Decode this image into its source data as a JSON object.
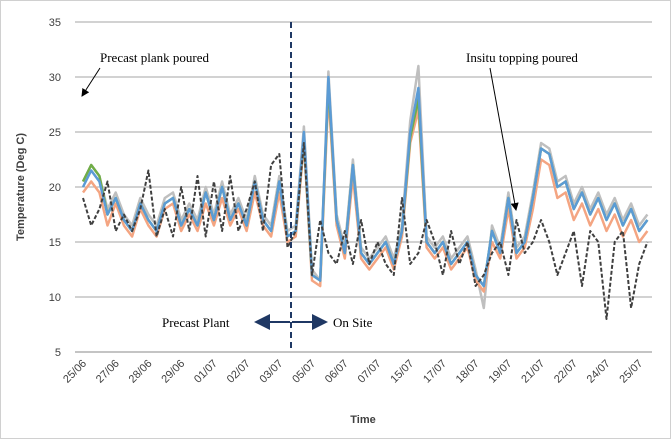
{
  "chart_data": {
    "type": "line",
    "y_label": "Temperature (Deg C)",
    "x_label": "Time",
    "annotations": [
      "Precast plank poured",
      "Insitu topping poured",
      "Precast Plant",
      "On Site"
    ],
    "categories": [
      "25/06",
      null,
      null,
      null,
      "27/06",
      null,
      null,
      null,
      "28/06",
      null,
      null,
      null,
      "29/06",
      null,
      null,
      null,
      "01/07",
      null,
      null,
      null,
      "02/07",
      null,
      null,
      null,
      "03/07",
      null,
      null,
      null,
      "05/07",
      null,
      null,
      null,
      "06/07",
      null,
      null,
      null,
      "07/07",
      null,
      null,
      null,
      "15/07",
      null,
      null,
      null,
      "17/07",
      null,
      null,
      null,
      "18/07",
      null,
      null,
      null,
      "19/07",
      null,
      null,
      null,
      "21/07",
      null,
      null,
      null,
      "22/07",
      null,
      null,
      null,
      "24/07",
      null,
      null,
      null,
      "25/07",
      null
    ],
    "series": [
      {
        "color": "#bfbfbf",
        "dashed": false,
        "values": [
          20.5,
          22,
          21,
          18,
          19.5,
          17.5,
          16.5,
          19,
          17.5,
          16.5,
          19,
          19.5,
          17,
          18.5,
          17,
          20,
          17.5,
          20.5,
          17.5,
          19,
          17,
          21,
          17.5,
          16.5,
          21,
          16,
          16.5,
          25.5,
          12.5,
          11.5,
          30.5,
          17.5,
          14.5,
          22.5,
          14.5,
          13.5,
          14.5,
          15.5,
          13.5,
          16.5,
          26,
          31,
          15.5,
          14.5,
          15.5,
          13.5,
          14.5,
          15.5,
          12.5,
          9,
          16.5,
          14.5,
          19.5,
          14.5,
          15.5,
          19.5,
          24,
          23.5,
          20.5,
          21,
          18.5,
          20,
          18,
          19.5,
          17.5,
          19,
          17,
          18.5,
          16.5,
          17.5
        ]
      },
      {
        "color": "#f4a582",
        "dashed": false,
        "values": [
          19.5,
          20.5,
          19.5,
          16.5,
          18.5,
          16.5,
          15.5,
          18,
          16.5,
          15.5,
          18,
          18.5,
          16,
          17.5,
          16,
          18.5,
          16.5,
          19,
          16.5,
          18,
          16,
          19.5,
          16.5,
          15.5,
          19.5,
          15,
          15.5,
          24,
          11.5,
          11,
          28.5,
          16.5,
          13.5,
          21,
          13.5,
          12.5,
          13.5,
          14.5,
          12.5,
          15.5,
          24,
          27,
          14.5,
          13.5,
          14.5,
          12.5,
          13.5,
          14.5,
          11.5,
          10.5,
          15,
          13.5,
          18,
          13.5,
          14.5,
          18,
          22.5,
          22,
          19,
          19.5,
          17,
          18.5,
          16.5,
          18,
          16,
          17.5,
          15.5,
          17,
          15,
          16
        ]
      },
      {
        "color": "#70ad47",
        "dashed": false,
        "values": [
          20.5,
          22,
          21,
          17.5,
          19,
          17,
          16,
          18.5,
          17,
          16,
          18.5,
          19,
          16.5,
          18,
          16.5,
          19.5,
          17,
          20,
          17,
          18.5,
          16.5,
          20.5,
          17,
          16,
          20.5,
          15.5,
          16,
          24.5,
          12,
          11.5,
          29.5,
          17,
          14,
          22,
          14,
          13,
          14,
          15,
          13,
          16,
          24.5,
          28,
          15,
          14,
          15,
          13,
          14,
          15,
          12,
          11,
          16,
          14,
          19,
          14,
          15,
          19,
          23.5,
          23,
          20,
          20.5,
          18,
          19.5,
          17.5,
          19,
          17,
          18.5,
          16.5,
          18,
          16,
          17
        ]
      },
      {
        "color": "#5b9bd5",
        "dashed": false,
        "values": [
          20,
          21.5,
          20.5,
          17.5,
          19,
          17,
          16,
          18.5,
          17,
          16,
          18.5,
          19,
          16.5,
          18,
          16.5,
          19.5,
          17,
          20,
          17,
          18.5,
          16.5,
          20.5,
          17,
          16,
          20.5,
          15.5,
          16,
          25,
          12,
          11.5,
          30,
          17,
          14,
          22,
          14,
          13,
          14,
          15,
          13,
          16,
          25,
          29,
          15,
          14,
          15,
          13,
          14,
          15,
          12,
          11,
          16,
          14,
          19,
          14,
          15,
          19,
          23.5,
          23,
          20,
          20.5,
          18,
          19.5,
          17.5,
          19,
          17,
          18.5,
          16.5,
          18,
          16,
          17
        ]
      },
      {
        "color": "#404040",
        "dashed": true,
        "values": [
          19,
          16.5,
          18,
          20.5,
          16,
          17.5,
          16,
          18,
          21.5,
          15.5,
          18,
          15.5,
          20,
          16,
          21,
          15.5,
          20.5,
          16,
          21,
          16,
          18,
          20.5,
          16,
          22,
          23,
          14.5,
          16,
          24,
          12,
          17,
          14,
          13,
          16,
          13,
          17,
          13,
          15,
          13,
          12,
          19,
          13,
          14,
          17,
          15,
          12,
          16,
          13,
          15,
          11,
          12,
          14,
          15,
          12,
          17,
          14,
          15,
          17,
          15,
          12,
          14,
          16,
          11,
          16,
          15,
          8,
          15,
          16,
          9,
          13,
          15
        ]
      }
    ],
    "ylim": [
      5,
      35
    ],
    "yticks": [
      5,
      10,
      15,
      20,
      25,
      30,
      35
    ],
    "grid": true
  }
}
